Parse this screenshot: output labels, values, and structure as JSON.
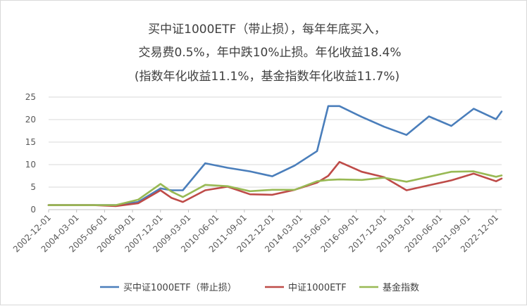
{
  "chart_data": {
    "type": "line",
    "title": [
      "买中证1000ETF（带止损），每年年底买入，",
      "交易费0.5%，年中跌10%止损。年化收益18.4%",
      "(指数年化收益11.1%，基金指数年化收益11.7%)"
    ],
    "xlabel": "",
    "ylabel": "",
    "ylim": [
      0,
      25
    ],
    "yticks": [
      "0",
      "5",
      "10",
      "15",
      "20",
      "25"
    ],
    "x_tick_labels": [
      "2002-12-01",
      "2004-03-01",
      "2005-06-01",
      "2006-09-01",
      "2007-12-01",
      "2009-03-01",
      "2010-06-01",
      "2011-09-01",
      "2012-12-01",
      "2014-03-01",
      "2015-06-01",
      "2016-09-01",
      "2017-12-01",
      "2019-03-01",
      "2020-06-01",
      "2021-09-01",
      "2022-12-01"
    ],
    "x": [
      "2002-12",
      "2003-12",
      "2004-12",
      "2005-12",
      "2006-12",
      "2007-12",
      "2008-06",
      "2008-12",
      "2009-12",
      "2010-12",
      "2011-12",
      "2012-12",
      "2013-12",
      "2014-12",
      "2015-06",
      "2015-12",
      "2016-12",
      "2017-12",
      "2018-12",
      "2019-12",
      "2020-12",
      "2021-12",
      "2022-12",
      "2023-03"
    ],
    "series": [
      {
        "name": "买中证1000ETF（带止损）",
        "color": "#4a7ebb",
        "values": [
          1.0,
          1.0,
          1.0,
          1.0,
          1.7,
          4.7,
          4.3,
          4.3,
          10.3,
          9.3,
          8.5,
          7.4,
          9.8,
          13.0,
          23.0,
          23.0,
          20.6,
          18.4,
          16.6,
          20.7,
          18.6,
          22.4,
          20.1,
          21.8
        ]
      },
      {
        "name": "中证1000ETF",
        "color": "#be4b48",
        "values": [
          1.0,
          1.0,
          1.0,
          0.8,
          1.4,
          4.3,
          2.6,
          1.7,
          4.3,
          5.1,
          3.4,
          3.3,
          4.4,
          6.0,
          7.5,
          10.6,
          8.4,
          7.2,
          4.3,
          5.4,
          6.5,
          8.0,
          6.3,
          6.9
        ]
      },
      {
        "name": "基金指数",
        "color": "#98b954",
        "values": [
          1.0,
          1.0,
          1.0,
          1.0,
          2.2,
          5.7,
          4.0,
          2.8,
          5.5,
          5.2,
          4.1,
          4.4,
          4.4,
          6.3,
          6.6,
          6.7,
          6.6,
          7.1,
          6.2,
          7.3,
          8.4,
          8.5,
          7.3,
          7.6
        ]
      }
    ],
    "grid": "horizontal",
    "legend": "bottom"
  }
}
